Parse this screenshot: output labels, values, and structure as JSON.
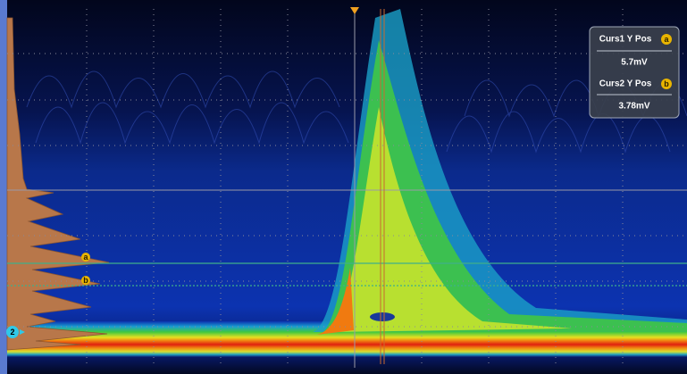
{
  "readout": {
    "cursor1": {
      "label": "Curs1 Y Pos",
      "badge": "a",
      "value": "5.7mV"
    },
    "cursor2": {
      "label": "Curs2 Y Pos",
      "badge": "b",
      "value": "3.78mV"
    }
  },
  "plot": {
    "cursor_markers": [
      "a",
      "b"
    ],
    "channel_marker": "2"
  }
}
